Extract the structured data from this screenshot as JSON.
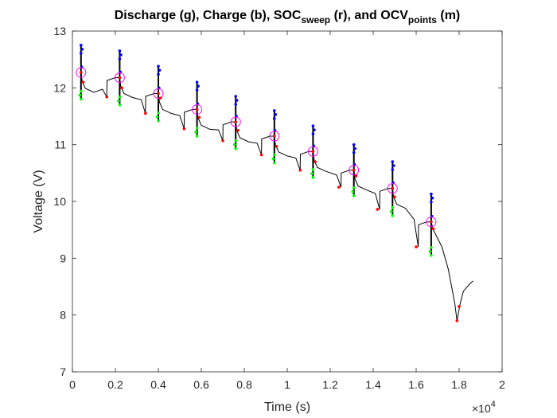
{
  "chart_data": {
    "type": "line",
    "title_parts": [
      {
        "text": "Discharge (g), Charge (b), SOC",
        "sub": false
      },
      {
        "text": "sweep",
        "sub": true
      },
      {
        "text": " (r), and OCV",
        "sub": false
      },
      {
        "text": "points",
        "sub": true
      },
      {
        "text": " (m)",
        "sub": false
      }
    ],
    "xlabel": "Time (s)",
    "ylabel": "Voltage (V)",
    "x_exponent_label": "×10",
    "x_exponent_power": "4",
    "xlim": [
      0,
      2
    ],
    "ylim": [
      7,
      13
    ],
    "x_ticks": [
      0,
      0.2,
      0.4,
      0.6,
      0.8,
      1,
      1.2,
      1.4,
      1.6,
      1.8,
      2
    ],
    "x_tick_labels": [
      "0",
      "0.2",
      "0.4",
      "0.6",
      "0.8",
      "1",
      "1.2",
      "1.4",
      "1.6",
      "1.8",
      "2"
    ],
    "y_ticks": [
      7,
      8,
      9,
      10,
      11,
      12,
      13
    ],
    "y_tick_labels": [
      "7",
      "8",
      "9",
      "10",
      "11",
      "12",
      "13"
    ],
    "grid": false,
    "colors": {
      "trace": "#000000",
      "discharge": "#00ff00",
      "charge": "#0000ff",
      "soc_sweep": "#ff0000",
      "ocv_points": "#ff00ff",
      "axes": "#262626"
    },
    "pulses": [
      {
        "t": 0.04,
        "base": 12.27,
        "charge_top": 12.75,
        "discharge_bottom": 11.8,
        "ocv": 12.27
      },
      {
        "t": 0.22,
        "base": 12.18,
        "charge_top": 12.65,
        "discharge_bottom": 11.7,
        "ocv": 12.18
      },
      {
        "t": 0.4,
        "base": 11.9,
        "charge_top": 12.38,
        "discharge_bottom": 11.42,
        "ocv": 11.9
      },
      {
        "t": 0.58,
        "base": 11.62,
        "charge_top": 12.1,
        "discharge_bottom": 11.15,
        "ocv": 11.62
      },
      {
        "t": 0.76,
        "base": 11.4,
        "charge_top": 11.85,
        "discharge_bottom": 10.93,
        "ocv": 11.4
      },
      {
        "t": 0.94,
        "base": 11.15,
        "charge_top": 11.6,
        "discharge_bottom": 10.68,
        "ocv": 11.15
      },
      {
        "t": 1.12,
        "base": 10.88,
        "charge_top": 11.33,
        "discharge_bottom": 10.42,
        "ocv": 10.88
      },
      {
        "t": 1.31,
        "base": 10.55,
        "charge_top": 11.0,
        "discharge_bottom": 10.1,
        "ocv": 10.55
      },
      {
        "t": 1.49,
        "base": 10.23,
        "charge_top": 10.7,
        "discharge_bottom": 9.75,
        "ocv": 10.23
      },
      {
        "t": 1.67,
        "base": 9.64,
        "charge_top": 10.13,
        "discharge_bottom": 9.05,
        "ocv": 9.64
      }
    ],
    "soc_sweep_points": [
      [
        0.04,
        12.27
      ],
      [
        0.05,
        12.1
      ],
      [
        0.16,
        11.84
      ],
      [
        0.22,
        12.18
      ],
      [
        0.23,
        12.0
      ],
      [
        0.34,
        11.55
      ],
      [
        0.4,
        11.9
      ],
      [
        0.41,
        11.82
      ],
      [
        0.52,
        11.28
      ],
      [
        0.58,
        11.62
      ],
      [
        0.59,
        11.48
      ],
      [
        0.7,
        11.07
      ],
      [
        0.76,
        11.4
      ],
      [
        0.77,
        11.25
      ],
      [
        0.88,
        10.82
      ],
      [
        0.94,
        11.15
      ],
      [
        0.95,
        10.97
      ],
      [
        1.06,
        10.55
      ],
      [
        1.12,
        10.88
      ],
      [
        1.13,
        10.7
      ],
      [
        1.24,
        10.25
      ],
      [
        1.31,
        10.55
      ],
      [
        1.32,
        10.45
      ],
      [
        1.42,
        9.86
      ],
      [
        1.49,
        10.23
      ],
      [
        1.5,
        10.08
      ],
      [
        1.6,
        9.2
      ],
      [
        1.67,
        9.64
      ],
      [
        1.68,
        9.52
      ],
      [
        1.79,
        7.9
      ],
      [
        1.8,
        8.15
      ]
    ],
    "final_trace": [
      [
        1.68,
        9.5
      ],
      [
        1.72,
        9.2
      ],
      [
        1.75,
        8.8
      ],
      [
        1.78,
        8.2
      ],
      [
        1.79,
        7.9
      ],
      [
        1.805,
        8.2
      ],
      [
        1.82,
        8.42
      ],
      [
        1.85,
        8.55
      ],
      [
        1.865,
        8.6
      ]
    ]
  }
}
